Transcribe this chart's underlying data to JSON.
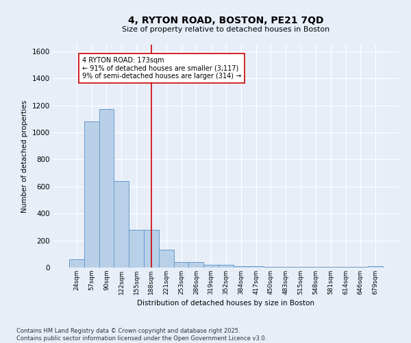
{
  "title": "4, RYTON ROAD, BOSTON, PE21 7QD",
  "subtitle": "Size of property relative to detached houses in Boston",
  "xlabel": "Distribution of detached houses by size in Boston",
  "ylabel": "Number of detached properties",
  "bar_categories": [
    "24sqm",
    "57sqm",
    "90sqm",
    "122sqm",
    "155sqm",
    "188sqm",
    "221sqm",
    "253sqm",
    "286sqm",
    "319sqm",
    "352sqm",
    "384sqm",
    "417sqm",
    "450sqm",
    "483sqm",
    "515sqm",
    "548sqm",
    "581sqm",
    "614sqm",
    "646sqm",
    "679sqm"
  ],
  "bar_values": [
    60,
    1080,
    1175,
    640,
    280,
    280,
    130,
    40,
    40,
    20,
    20,
    10,
    10,
    5,
    5,
    5,
    5,
    5,
    5,
    5,
    10
  ],
  "bar_color": "#b8d0e8",
  "bar_edge_color": "#6699cc",
  "property_line_x": 5.0,
  "annotation_text": "4 RYTON ROAD: 173sqm\n← 91% of detached houses are smaller (3,117)\n9% of semi-detached houses are larger (314) →",
  "annotation_box_color": "#ffffff",
  "annotation_box_edge": "#cc0000",
  "red_line_color": "#cc0000",
  "background_color": "#e8eef8",
  "grid_color": "#ffffff",
  "ylim": [
    0,
    1650
  ],
  "yticks": [
    0,
    200,
    400,
    600,
    800,
    1000,
    1200,
    1400,
    1600
  ],
  "footnote": "Contains HM Land Registry data © Crown copyright and database right 2025.\nContains public sector information licensed under the Open Government Licence v3.0."
}
